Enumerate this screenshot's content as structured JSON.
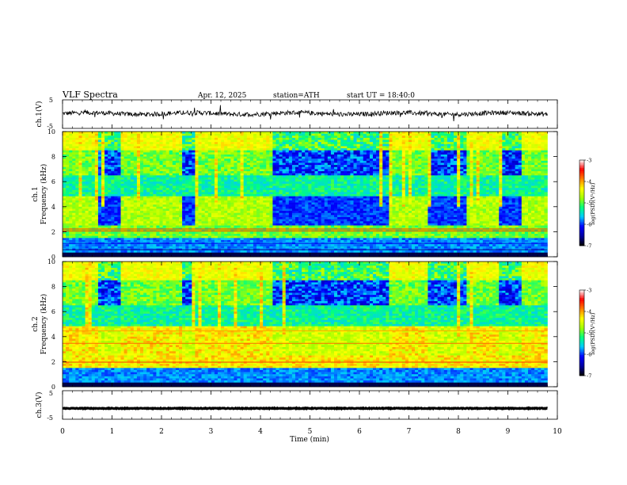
{
  "header": {
    "title": "VLF Spectra",
    "date": "Apr. 12, 2025",
    "station": "station=ATH",
    "start": "start UT =  18:40:0"
  },
  "colors": {
    "trace": "#000000",
    "colormap": [
      "#000000",
      "#0000a0",
      "#0000ff",
      "#00c8ff",
      "#00ff80",
      "#a0ff00",
      "#ffff00",
      "#ff8000",
      "#ff0000",
      "#ffffff"
    ]
  },
  "chart_data": [
    {
      "type": "line",
      "ylabel": "ch.1(V)",
      "ylim": [
        -5,
        5
      ],
      "y_ticks": [
        "5",
        "-5"
      ],
      "x_range": [
        0,
        10
      ],
      "baseline": 0.2,
      "data_end": 9.8
    },
    {
      "type": "heatmap",
      "ylabel_channel": "ch.1",
      "ylabel": "Frequency (kHz)",
      "ylim": [
        0,
        10
      ],
      "y_ticks": [
        "0",
        "2",
        "4",
        "6",
        "8",
        "10"
      ],
      "x_range": [
        0,
        10
      ],
      "data_end": 9.8,
      "colorbar": {
        "label": "log(PSD)(V²/Hz)",
        "range": [
          -7,
          -3
        ],
        "ticks": [
          "-3",
          "-4",
          "-5",
          "-6",
          "-7"
        ]
      },
      "quiet_intervals": [
        [
          0.0,
          0.7
        ],
        [
          1.15,
          2.45
        ],
        [
          2.7,
          4.25
        ],
        [
          6.6,
          7.4
        ],
        [
          8.15,
          8.85
        ],
        [
          9.25,
          9.8
        ]
      ]
    },
    {
      "type": "heatmap",
      "ylabel_channel": "ch.2",
      "ylabel": "Frequency (kHz)",
      "ylim": [
        0,
        10
      ],
      "y_ticks": [
        "0",
        "2",
        "4",
        "6",
        "8",
        "10"
      ],
      "x_range": [
        0,
        10
      ],
      "data_end": 9.8,
      "colorbar": {
        "label": "log(PSD)(V²/Hz)",
        "range": [
          -7,
          -3
        ],
        "ticks": [
          "-3",
          "-4",
          "-5",
          "-6",
          "-7"
        ]
      },
      "quiet_intervals": [
        [
          0.0,
          0.7
        ],
        [
          1.15,
          2.45
        ],
        [
          2.7,
          4.25
        ],
        [
          6.6,
          7.4
        ],
        [
          8.15,
          8.85
        ],
        [
          9.25,
          9.8
        ]
      ]
    },
    {
      "type": "line",
      "ylabel": "ch.3(V)",
      "ylim": [
        -5,
        5
      ],
      "y_ticks": [
        "5",
        "-5"
      ],
      "x_range": [
        0,
        10
      ],
      "baseline": -1.2,
      "data_end": 9.8
    }
  ],
  "x_axis": {
    "label": "Time  (min)",
    "ticks": [
      "0",
      "1",
      "2",
      "3",
      "4",
      "5",
      "6",
      "7",
      "8",
      "9",
      "10"
    ],
    "range": [
      0,
      10
    ]
  }
}
